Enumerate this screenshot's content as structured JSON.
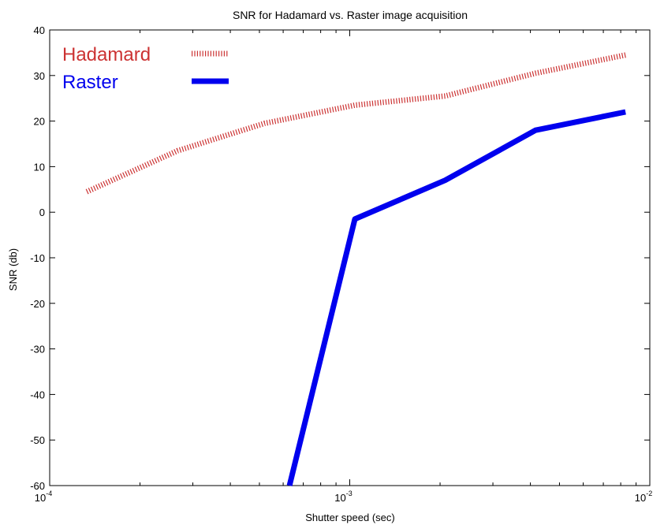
{
  "chart_data": {
    "type": "line",
    "title": "SNR for Hadamard vs. Raster image acquisition",
    "xlabel": "Shutter speed (sec)",
    "ylabel": "SNR (db)",
    "x_scale": "log",
    "xlim": [
      0.0001,
      0.01
    ],
    "ylim": [
      -60,
      40
    ],
    "x_ticks": [
      {
        "value": 0.0001,
        "base": "10",
        "exp": "-4"
      },
      {
        "value": 0.001,
        "base": "10",
        "exp": "-3"
      },
      {
        "value": 0.01,
        "base": "10",
        "exp": "-2"
      }
    ],
    "y_ticks": [
      -60,
      -50,
      -40,
      -30,
      -20,
      -10,
      0,
      10,
      20,
      30,
      40
    ],
    "grid": false,
    "legend_position": "top-left",
    "series": [
      {
        "name": "Hadamard",
        "color": "#cc3333",
        "style": "dotted",
        "x": [
          0.000133,
          0.000267,
          0.00052,
          0.00104,
          0.00208,
          0.00416,
          0.0083
        ],
        "y": [
          4.5,
          13.5,
          19.5,
          23.5,
          25.5,
          30.5,
          34.5
        ]
      },
      {
        "name": "Raster",
        "color": "#0000ee",
        "style": "solid",
        "x": [
          0.00063,
          0.00104,
          0.00208,
          0.00416,
          0.0083
        ],
        "y": [
          -60,
          -1.5,
          7,
          18,
          22
        ]
      }
    ]
  }
}
